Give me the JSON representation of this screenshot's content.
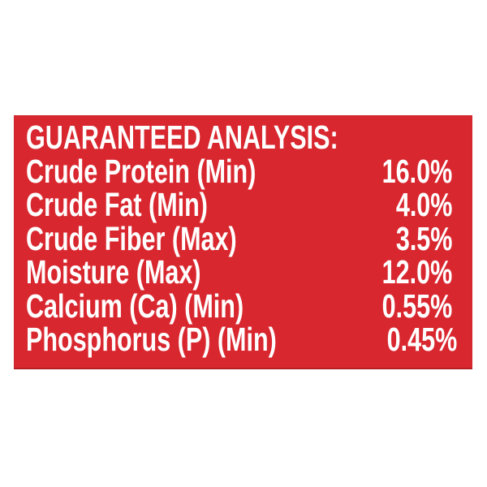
{
  "canvas": {
    "background_color": "#FFFFFF"
  },
  "panel": {
    "background_color": "#D9272F",
    "text_color": "#FFFFFF",
    "heading": "GUARANTEED ANALYSIS:",
    "rows": [
      {
        "label": "Crude Protein (Min)",
        "value": "16.0%"
      },
      {
        "label": "Crude Fat (Min)",
        "value": "4.0%"
      },
      {
        "label": "Crude Fiber (Max)",
        "value": "3.5%"
      },
      {
        "label": "Moisture (Max)",
        "value": "12.0%"
      },
      {
        "label": "Calcium (Ca) (Min)",
        "value": "0.55%"
      },
      {
        "label": "Phosphorus (P) (Min)",
        "value": "0.45%"
      }
    ]
  }
}
